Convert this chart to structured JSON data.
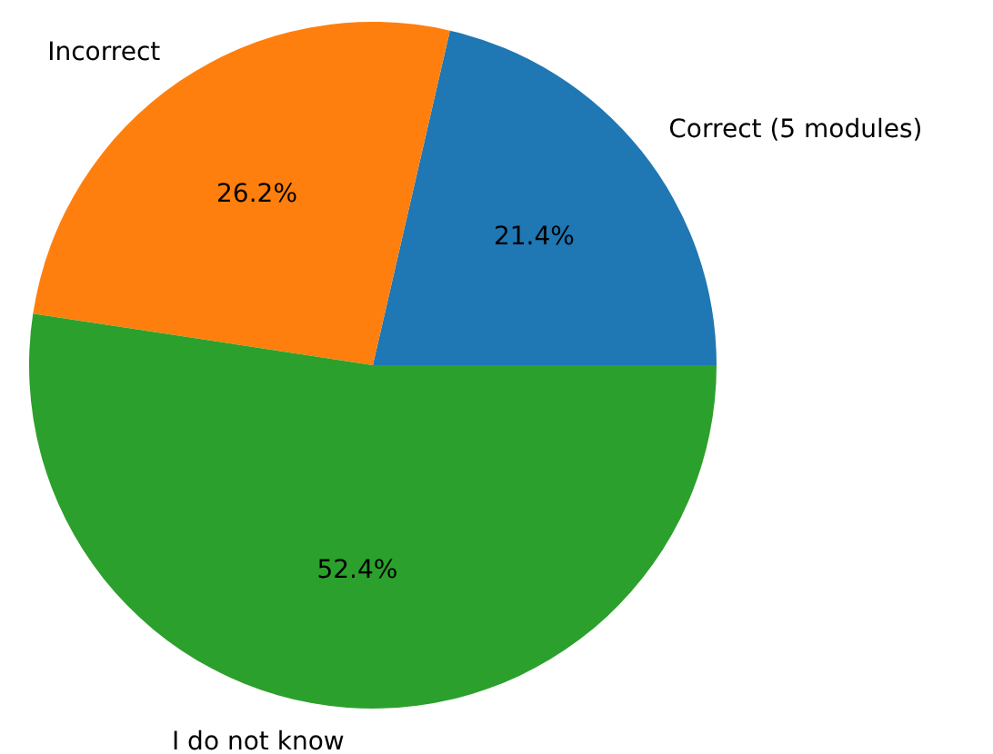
{
  "chart_data": {
    "type": "pie",
    "categories": [
      "Correct (5 modules)",
      "Incorrect",
      "I do not know"
    ],
    "values": [
      21.4,
      26.2,
      52.4
    ],
    "value_labels": [
      "21.4%",
      "26.2%",
      "52.4%"
    ],
    "colors": [
      "#1f77b4",
      "#ff7f0e",
      "#2ca02c"
    ]
  }
}
